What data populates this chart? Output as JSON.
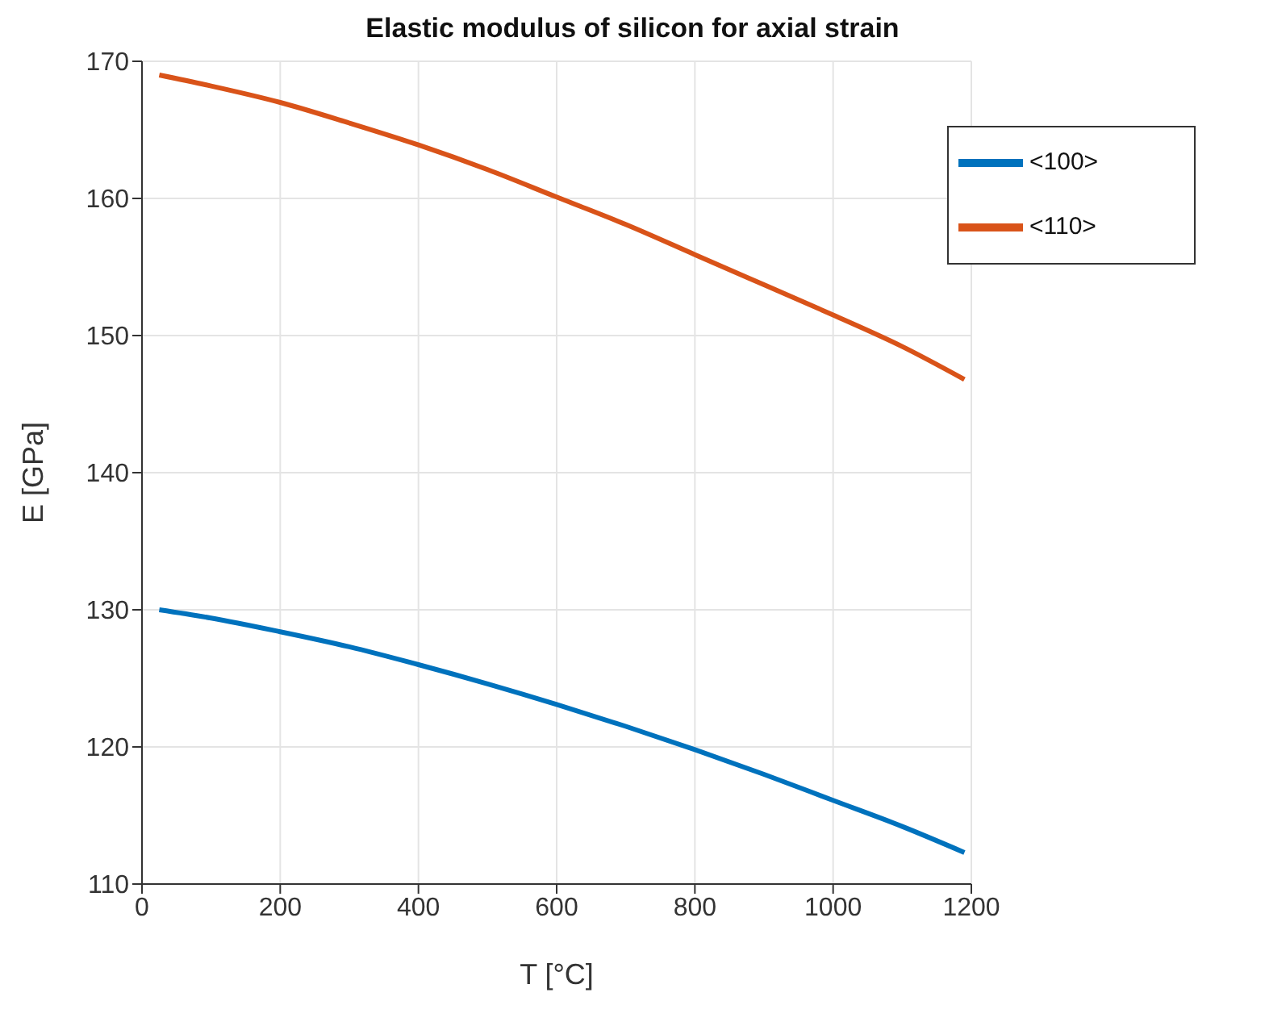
{
  "chart_data": {
    "type": "line",
    "title": "Elastic modulus of silicon for axial strain",
    "xlabel": "T [°C]",
    "ylabel": "E [GPa]",
    "x": [
      25,
      100,
      200,
      300,
      400,
      500,
      600,
      700,
      800,
      900,
      1000,
      1100,
      1190
    ],
    "series": [
      {
        "name": "<100>",
        "color": "#0072bd",
        "values": [
          130.0,
          129.4,
          128.4,
          127.3,
          126.0,
          124.6,
          123.1,
          121.5,
          119.8,
          118.0,
          116.1,
          114.2,
          112.3
        ]
      },
      {
        "name": "<110>",
        "color": "#d95319",
        "values": [
          169.0,
          168.2,
          167.0,
          165.5,
          163.9,
          162.1,
          160.1,
          158.1,
          155.9,
          153.7,
          151.5,
          149.2,
          146.8
        ]
      }
    ],
    "xlim": [
      0,
      1200
    ],
    "xticks": [
      0,
      200,
      400,
      600,
      800,
      1000,
      1200
    ],
    "ylim": [
      110,
      170
    ],
    "yticks": [
      110,
      120,
      130,
      140,
      150,
      160,
      170
    ],
    "grid": true,
    "legend": "top right",
    "marker": "none",
    "line_style": "solid"
  }
}
